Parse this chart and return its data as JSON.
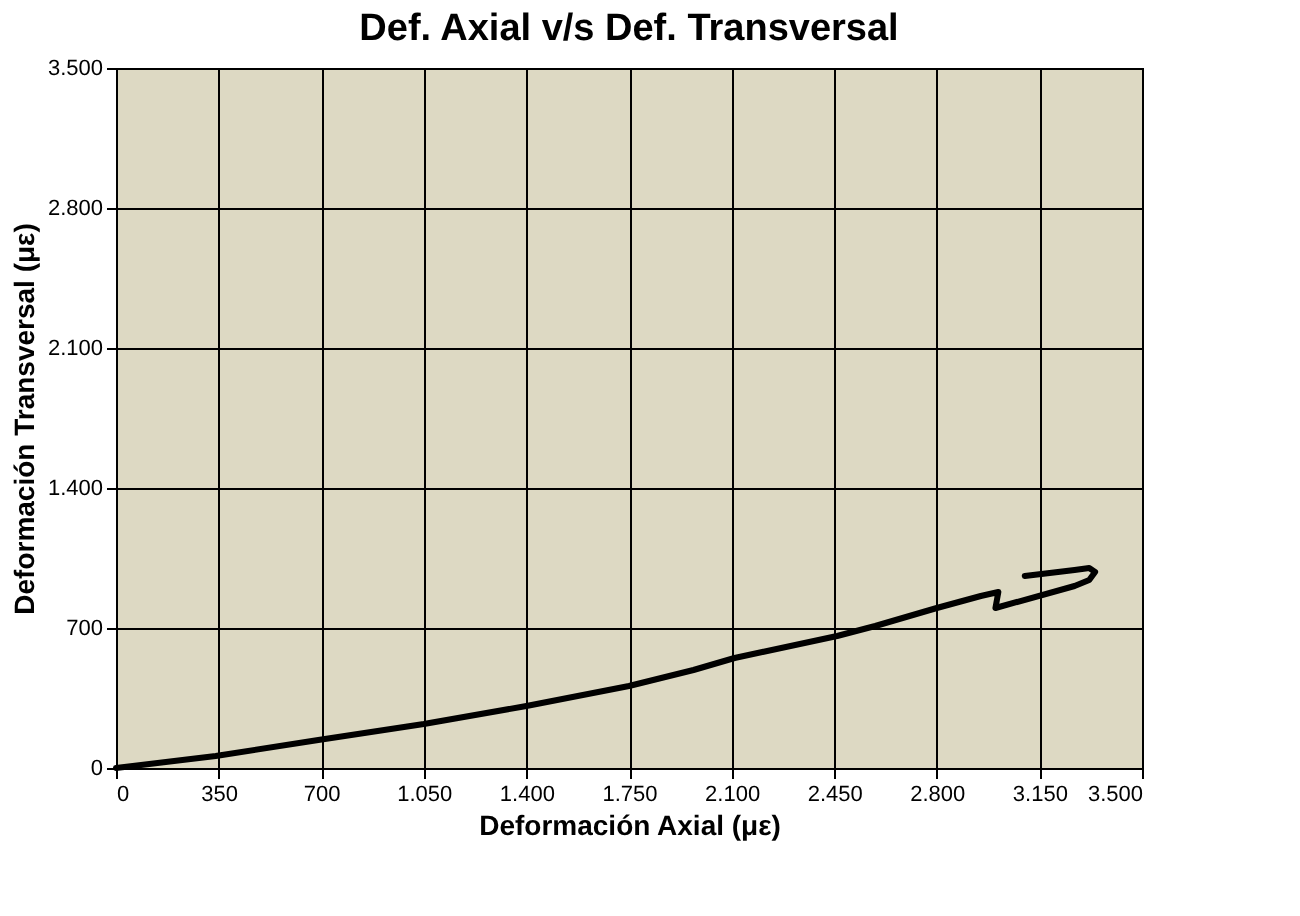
{
  "chart_data": {
    "type": "line",
    "title": "Def. Axial v/s Def. Transversal",
    "xlabel": "Deformación Axial (με)",
    "ylabel": "Deformación Transversal (με)",
    "x": [
      0,
      340,
      690,
      1050,
      1400,
      1750,
      1970,
      2110,
      2460,
      2590,
      2800,
      2950,
      3010,
      3000,
      3270,
      3320,
      3340,
      3320,
      3270,
      3100
    ],
    "series": [
      {
        "color": "#000000",
        "values": [
          0,
          60,
          140,
          220,
          310,
          410,
          490,
          550,
          660,
          710,
          800,
          860,
          880,
          800,
          910,
          940,
          980,
          1000,
          990,
          960
        ]
      }
    ],
    "xlim": [
      0,
      3500
    ],
    "ylim": [
      0,
      3500
    ],
    "xticks": [
      0,
      350,
      700,
      {
        "value": 1050,
        "label": "1.050"
      },
      {
        "value": 1400,
        "label": "1.400"
      },
      {
        "value": 1750,
        "label": "1.750"
      },
      {
        "value": 2100,
        "label": "2.100"
      },
      {
        "value": 2450,
        "label": "2.450"
      },
      {
        "value": 2800,
        "label": "2.800"
      },
      {
        "value": 3150,
        "label": "3.150"
      },
      {
        "value": 3500,
        "label": "3.500"
      }
    ],
    "yticks": [
      0,
      700,
      {
        "value": 1400,
        "label": "1.400"
      },
      {
        "value": 2100,
        "label": "2.100"
      },
      {
        "value": 2800,
        "label": "2.800"
      },
      {
        "value": 3500,
        "label": "3.500"
      }
    ],
    "grid": true,
    "marker": "none",
    "line_style": "solid"
  }
}
